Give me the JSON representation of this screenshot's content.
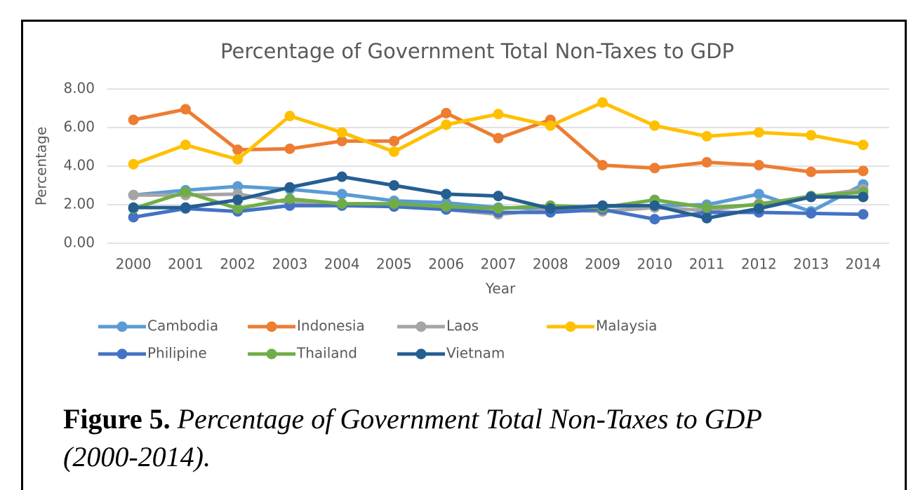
{
  "chart_data": {
    "type": "line",
    "title": "Percentage of Government Total Non-Taxes to GDP",
    "x_label": "Year",
    "y_label": "Percentage",
    "categories": [
      "2000",
      "2001",
      "2002",
      "2003",
      "2004",
      "2005",
      "2006",
      "2007",
      "2008",
      "2009",
      "2010",
      "2011",
      "2012",
      "2013",
      "2014"
    ],
    "series": [
      {
        "name": "Cambodia",
        "color": "#5b9bd5",
        "values": [
          2.5,
          2.75,
          2.95,
          2.8,
          2.55,
          2.2,
          2.1,
          1.85,
          1.8,
          1.9,
          1.95,
          2.0,
          2.55,
          1.65,
          3.05
        ]
      },
      {
        "name": "Indonesia",
        "color": "#ed7d31",
        "values": [
          6.4,
          6.95,
          4.85,
          4.9,
          5.3,
          5.3,
          6.75,
          5.45,
          6.4,
          4.05,
          3.9,
          4.2,
          4.05,
          3.7,
          3.75
        ]
      },
      {
        "name": "Laos",
        "color": "#a5a5a5",
        "values": [
          2.5,
          2.5,
          2.55,
          2.1,
          2.0,
          2.0,
          1.75,
          1.5,
          1.75,
          1.65,
          1.85,
          1.7,
          2.05,
          2.4,
          2.8
        ]
      },
      {
        "name": "Malaysia",
        "color": "#ffc000",
        "values": [
          4.1,
          5.1,
          4.35,
          6.6,
          5.75,
          4.75,
          6.15,
          6.7,
          6.1,
          7.3,
          6.1,
          5.55,
          5.75,
          5.6,
          5.1
        ]
      },
      {
        "name": "Philipine",
        "color": "#4472c4",
        "values": [
          1.35,
          1.8,
          1.65,
          1.95,
          1.95,
          1.9,
          1.75,
          1.6,
          1.6,
          1.75,
          1.25,
          1.6,
          1.6,
          1.55,
          1.5
        ]
      },
      {
        "name": "Thailand",
        "color": "#70ad47",
        "values": [
          1.8,
          2.65,
          1.8,
          2.3,
          2.05,
          2.05,
          1.9,
          1.8,
          1.95,
          1.85,
          2.25,
          1.85,
          2.0,
          2.45,
          2.65
        ]
      },
      {
        "name": "Vietnam",
        "color": "#255e91",
        "values": [
          1.85,
          1.85,
          2.25,
          2.9,
          3.45,
          3.0,
          2.55,
          2.45,
          1.8,
          1.95,
          1.95,
          1.3,
          1.8,
          2.4,
          2.4
        ]
      }
    ],
    "ylim": [
      0,
      8
    ],
    "yticks": [
      {
        "value": 0,
        "label": "0.00"
      },
      {
        "value": 2,
        "label": "2.00"
      },
      {
        "value": 4,
        "label": "4.00"
      },
      {
        "value": 6,
        "label": "6.00"
      },
      {
        "value": 8,
        "label": "8.00"
      }
    ],
    "grid": true,
    "legend": "bottom"
  },
  "caption": {
    "label": "Figure 5.",
    "text": "Percentage of Government Total Non-Taxes to GDP",
    "text2": "(2000-2014)."
  }
}
